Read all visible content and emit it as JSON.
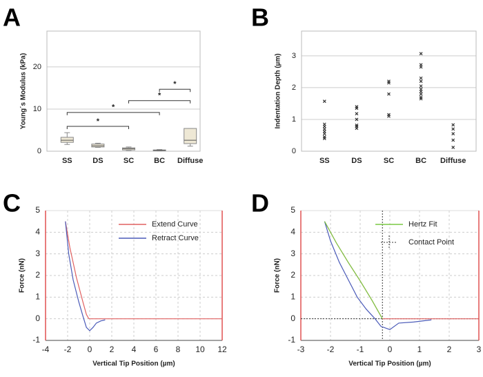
{
  "chart_data": [
    {
      "type": "box",
      "label": "A",
      "ylabel": "Young´s Modulus (kPa)",
      "categories": [
        "SS",
        "DS",
        "SC",
        "BC",
        "Diffuse"
      ],
      "min": [
        1.6,
        0.9,
        0.2,
        0.1,
        1.2
      ],
      "q1": [
        2.1,
        1.0,
        0.3,
        0.15,
        1.8
      ],
      "median": [
        2.6,
        1.3,
        0.6,
        0.2,
        2.6
      ],
      "q3": [
        3.3,
        1.7,
        0.8,
        0.3,
        5.4
      ],
      "max": [
        4.4,
        1.9,
        1.0,
        0.4,
        5.4
      ],
      "color": "#eee8d5",
      "edge_color": "#888888",
      "ylim": [
        0,
        28.5
      ],
      "yticks": [
        0,
        10,
        20
      ],
      "grid": "solid",
      "brackets": [
        {
          "from": "SS",
          "to": "SC",
          "y": 5.9,
          "text": "*"
        },
        {
          "from": "SS",
          "to": "BC",
          "y": 9.2,
          "text": "*"
        },
        {
          "from": "SC",
          "to": "Diffuse",
          "y": 12.0,
          "text": "*"
        },
        {
          "from": "BC",
          "to": "Diffuse",
          "y": 14.7,
          "text": "*"
        }
      ]
    },
    {
      "type": "scatter",
      "label": "B",
      "ylabel": "Indentation Depth (µm)",
      "categories": [
        "SS",
        "DS",
        "SC",
        "BC",
        "Diffuse"
      ],
      "values": [
        [
          1.57,
          0.85,
          0.78,
          0.7,
          0.62,
          0.55,
          0.45,
          0.4
        ],
        [
          1.4,
          1.35,
          1.18,
          1.0,
          0.82,
          0.78,
          0.72
        ],
        [
          2.2,
          2.15,
          1.8,
          1.15,
          1.1
        ],
        [
          3.07,
          2.72,
          2.65,
          2.3,
          2.2,
          2.05,
          1.95,
          1.88,
          1.8,
          1.7,
          1.65
        ],
        [
          0.83,
          0.7,
          0.55,
          0.35,
          0.12
        ]
      ],
      "color": "#333333",
      "ylim": [
        0,
        3.78
      ],
      "yticks": [
        0,
        1,
        2,
        3
      ],
      "grid": "solid"
    },
    {
      "type": "line",
      "label": "C",
      "xlabel": "Vertical Tip Position (µm)",
      "ylabel": "Force (nN)",
      "xlim": [
        -4,
        12
      ],
      "xticks": [
        -4,
        -2,
        0,
        2,
        4,
        6,
        8,
        10,
        12
      ],
      "ylim": [
        -1,
        5
      ],
      "yticks": [
        -1,
        0,
        1,
        2,
        3,
        4,
        5
      ],
      "grid": "dashed",
      "legend": "top-right",
      "series": [
        {
          "name": "Extend Curve",
          "color": "#e06060",
          "x": [
            -2.2,
            -1.8,
            -1.2,
            -0.6,
            -0.3,
            -0.1,
            0,
            12
          ],
          "values": [
            4.5,
            3.3,
            1.9,
            0.75,
            0.2,
            0.02,
            0,
            0
          ]
        },
        {
          "name": "Retract Curve",
          "color": "#4a5ab8",
          "x": [
            -2.2,
            -1.9,
            -1.5,
            -1.0,
            -0.6,
            -0.3,
            0,
            0.3,
            0.6,
            1.0,
            1.4
          ],
          "values": [
            4.5,
            3.0,
            1.8,
            0.8,
            0.1,
            -0.4,
            -0.55,
            -0.4,
            -0.2,
            -0.1,
            -0.05
          ]
        }
      ]
    },
    {
      "type": "line",
      "label": "D",
      "xlabel": "Vertical Tip Position (µm)",
      "ylabel": "Force (nN)",
      "xlim": [
        -3,
        3
      ],
      "xticks": [
        -3,
        -2,
        -1,
        0,
        1,
        2,
        3
      ],
      "ylim": [
        -1,
        5
      ],
      "yticks": [
        -1,
        0,
        1,
        2,
        3,
        4,
        5
      ],
      "grid": "dashed",
      "legend": "top-right",
      "series": [
        {
          "color": "#e06060",
          "x": [
            -2.2,
            -1.8,
            -1.4,
            -1.0,
            -0.6,
            -0.3,
            -0.25,
            3
          ],
          "values": [
            4.5,
            3.5,
            2.6,
            1.75,
            0.85,
            0.12,
            0,
            0
          ]
        },
        {
          "color": "#4a5ab8",
          "x": [
            -2.2,
            -2.0,
            -1.7,
            -1.4,
            -1.1,
            -0.8,
            -0.5,
            -0.3,
            0,
            0.3,
            0.8,
            1.4
          ],
          "values": [
            4.5,
            3.6,
            2.6,
            1.8,
            1.0,
            0.45,
            0.0,
            -0.35,
            -0.5,
            -0.2,
            -0.15,
            -0.05
          ]
        },
        {
          "name": "Hertz Fit",
          "color": "#7ac943",
          "x": [
            -2.2,
            -1.8,
            -1.4,
            -1.0,
            -0.6,
            -0.3,
            -0.25
          ],
          "values": [
            4.5,
            3.5,
            2.6,
            1.75,
            0.85,
            0.12,
            0
          ]
        }
      ],
      "contact_point": {
        "name": "Contact Point",
        "x": -0.25,
        "y": 0
      }
    }
  ]
}
